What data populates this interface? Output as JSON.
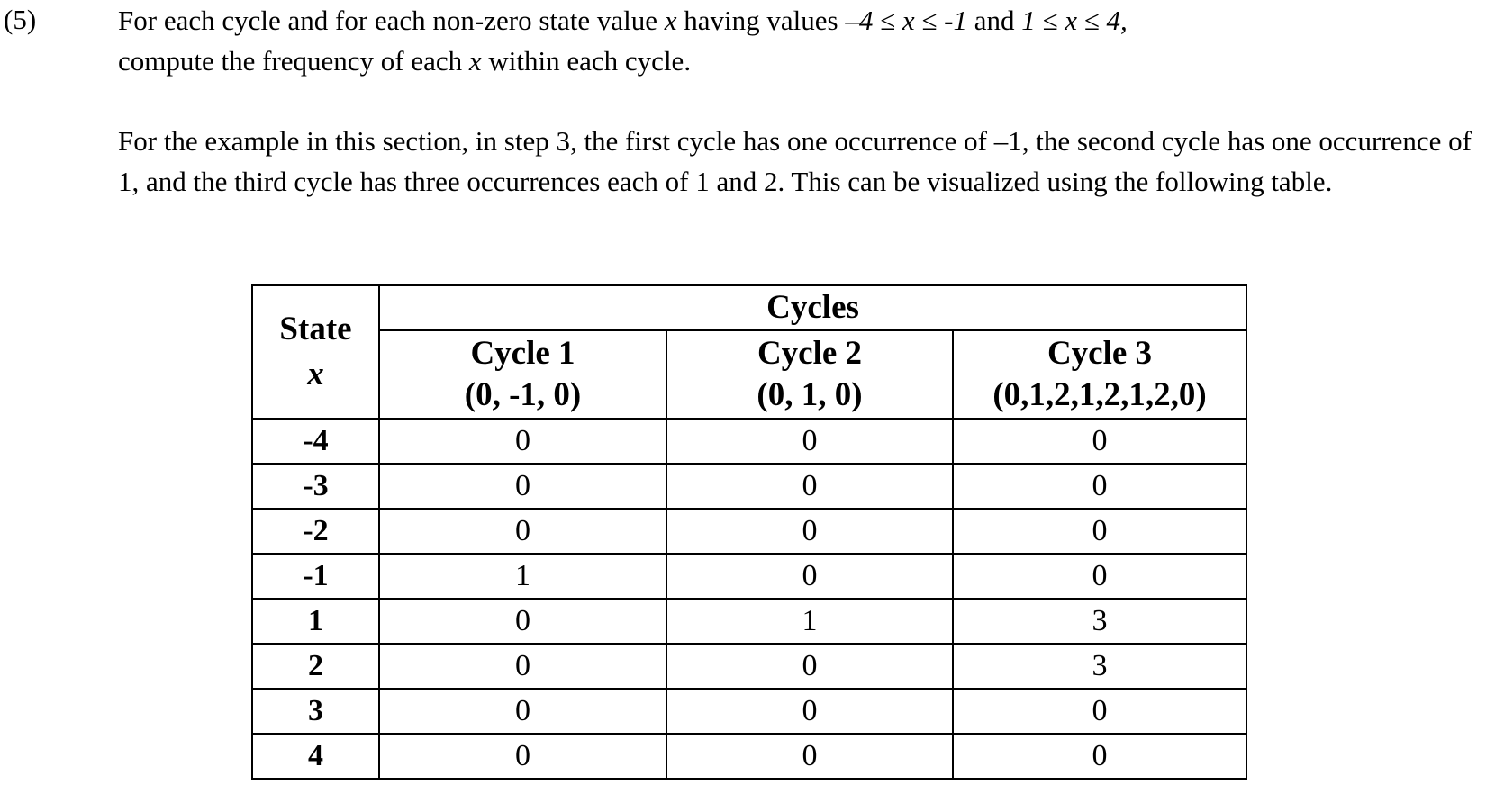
{
  "step": {
    "number": "(5)"
  },
  "paragraph1": {
    "line1_a": "For each cycle and for each non-zero state value ",
    "line1_x1": "x",
    "line1_b": " having values ",
    "line1_range1": "–4 ≤ x ≤ -1",
    "line1_c": " and ",
    "line1_range2": "1 ≤ x ≤ 4,",
    "line2_a": "compute the frequency of each ",
    "line2_x": "x",
    "line2_b": " within each cycle."
  },
  "paragraph2": {
    "text": "For the example in this section, in step 3, the first cycle has one occurrence of –1, the second cycle has one occurrence of 1, and the third cycle has three occurrences each of 1 and 2. This can be visualized using the following table."
  },
  "table": {
    "group_header": "Cycles",
    "state_header": {
      "label": "State",
      "var": "x"
    },
    "cycle_headers": [
      {
        "name": "Cycle 1",
        "sequence": "(0, -1, 0)"
      },
      {
        "name": "Cycle 2",
        "sequence": "(0, 1, 0)"
      },
      {
        "name": "Cycle 3",
        "sequence": "(0,1,2,1,2,1,2,0)"
      }
    ],
    "rows": [
      {
        "state": "-4",
        "values": [
          "0",
          "0",
          "0"
        ]
      },
      {
        "state": "-3",
        "values": [
          "0",
          "0",
          "0"
        ]
      },
      {
        "state": "-2",
        "values": [
          "0",
          "0",
          "0"
        ]
      },
      {
        "state": "-1",
        "values": [
          "1",
          "0",
          "0"
        ]
      },
      {
        "state": "1",
        "values": [
          "0",
          "1",
          "3"
        ]
      },
      {
        "state": "2",
        "values": [
          "0",
          "0",
          "3"
        ]
      },
      {
        "state": "3",
        "values": [
          "0",
          "0",
          "0"
        ]
      },
      {
        "state": "4",
        "values": [
          "0",
          "0",
          "0"
        ]
      }
    ]
  }
}
